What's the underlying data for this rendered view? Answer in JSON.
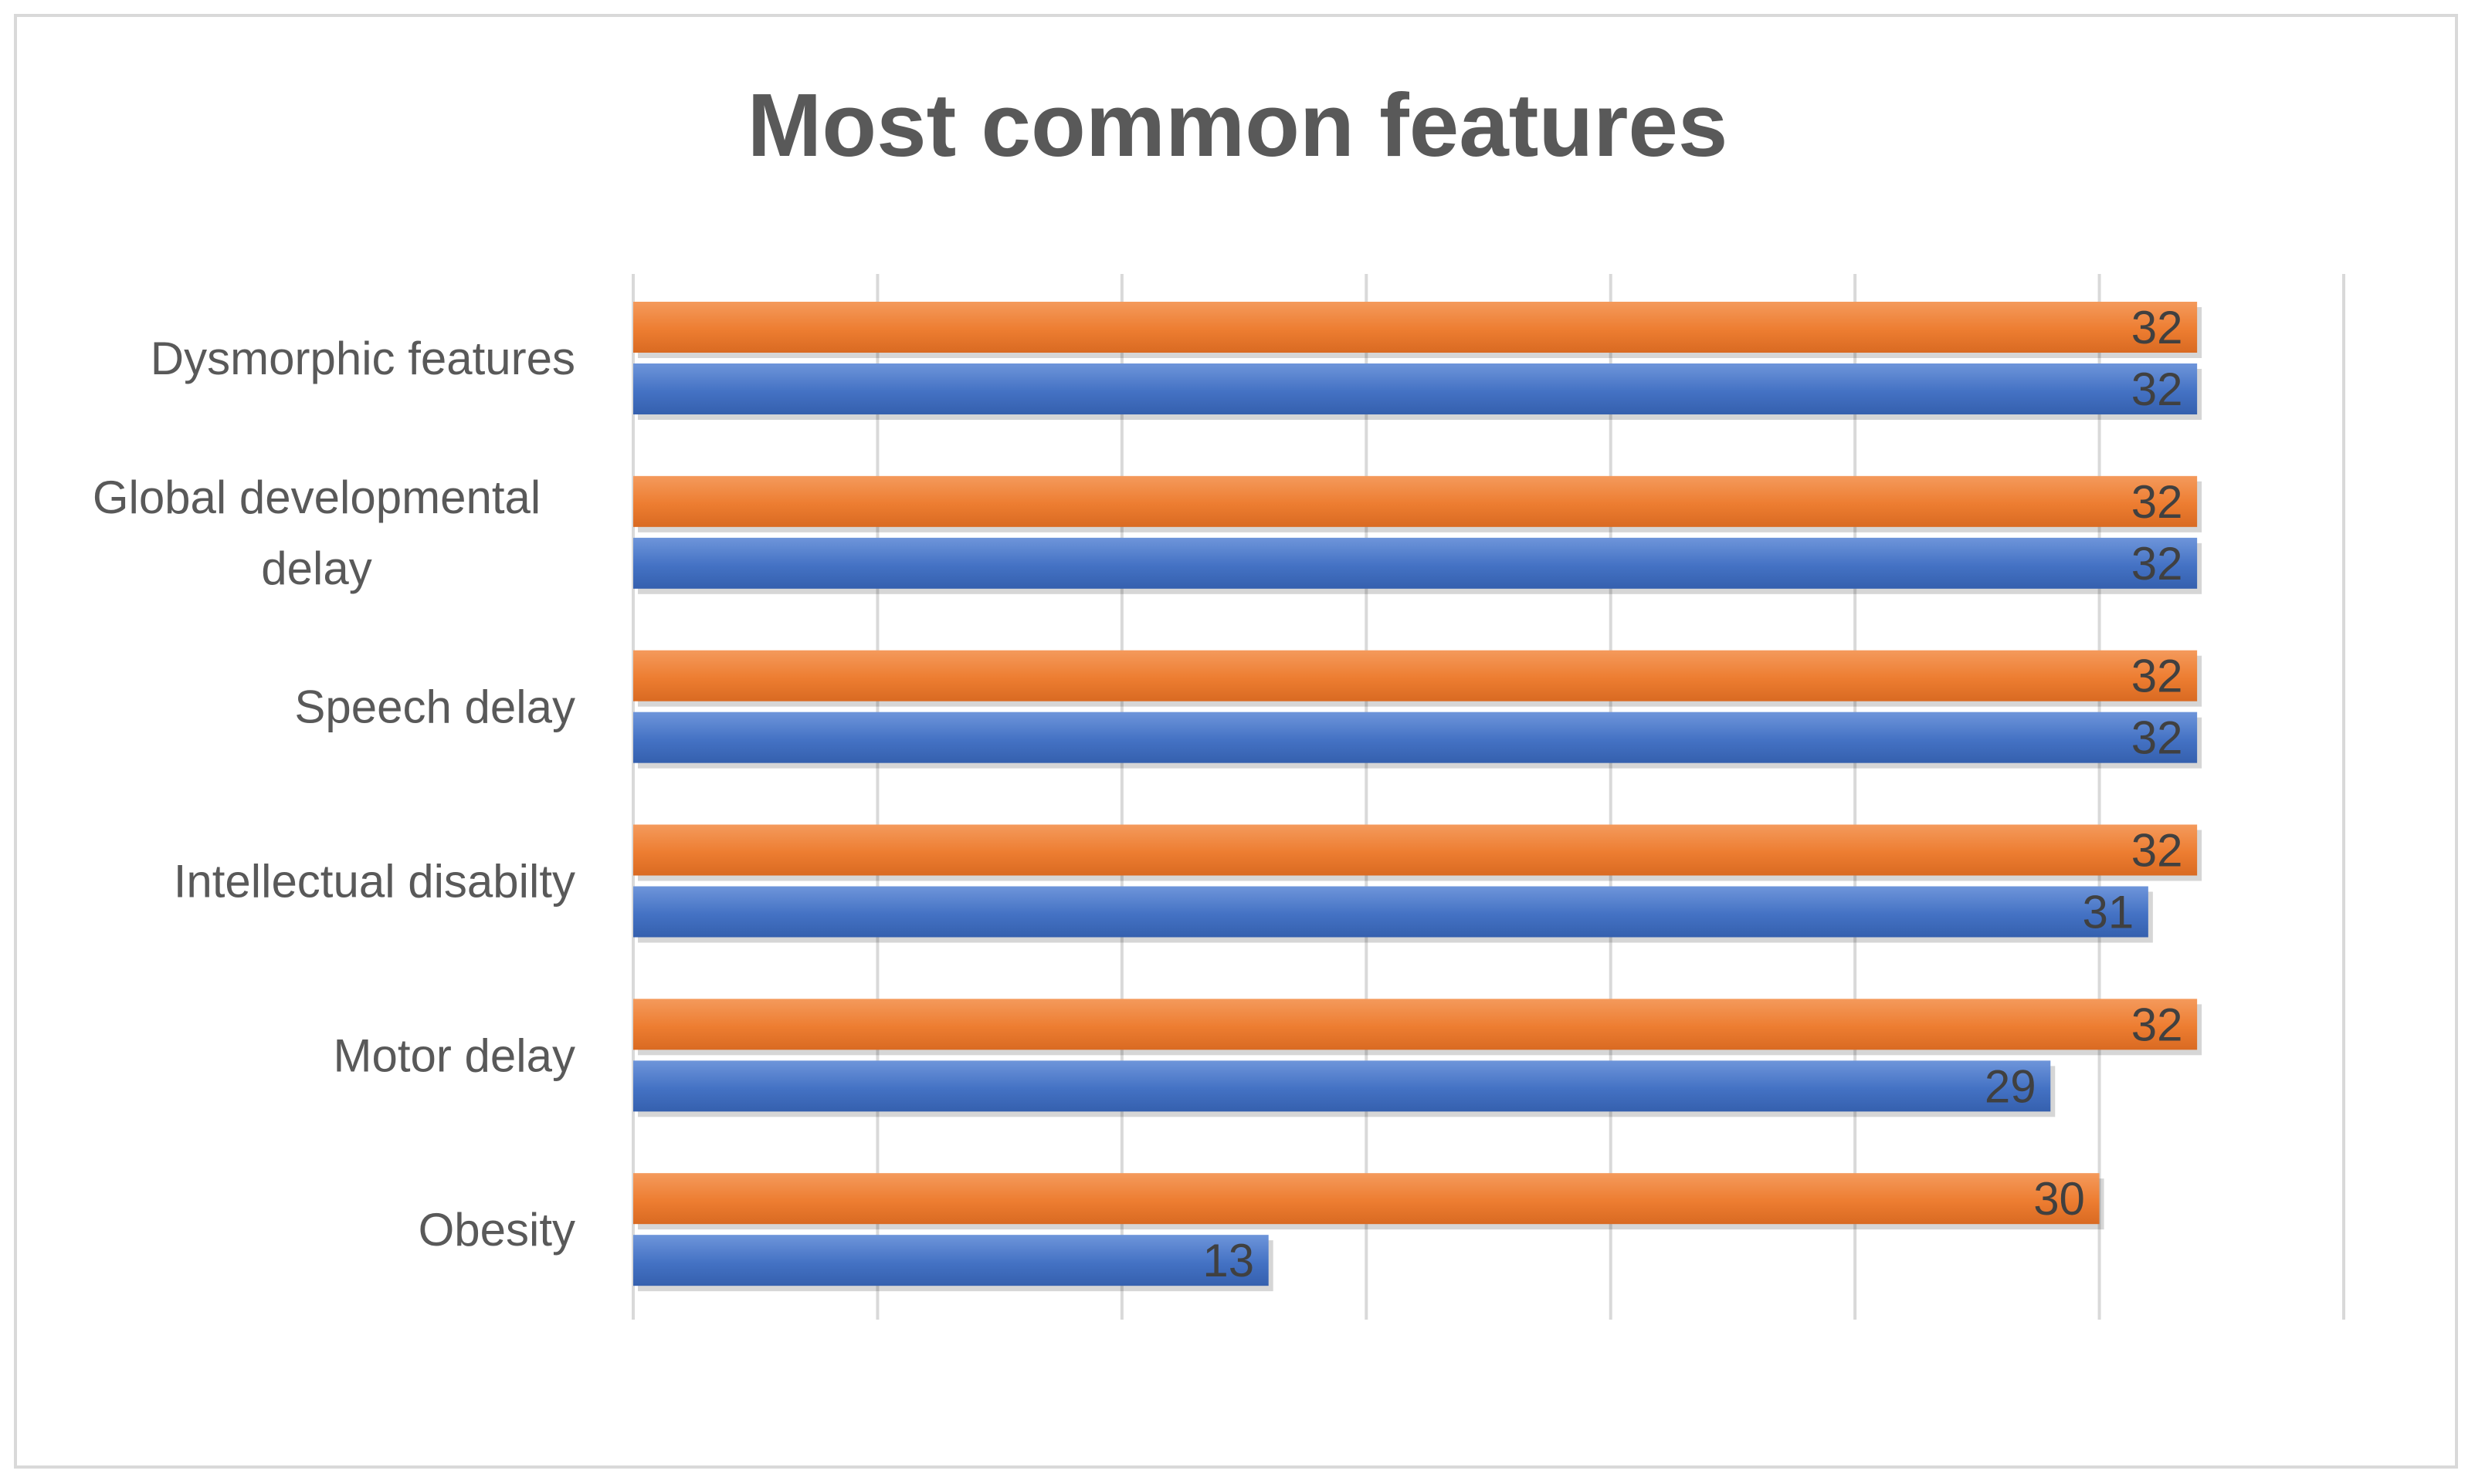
{
  "chart_data": {
    "type": "bar",
    "orientation": "horizontal",
    "title": "Most common features",
    "xlabel": "",
    "ylabel": "",
    "categories": [
      "Dysmorphic features",
      "Global developmental delay",
      "Speech delay",
      "Intellectual disabilty",
      "Motor delay",
      "Obesity"
    ],
    "category_lines": [
      [
        "Dysmorphic features"
      ],
      [
        "Global developmental",
        "delay"
      ],
      [
        "Speech delay"
      ],
      [
        "Intellectual disabilty"
      ],
      [
        "Motor delay"
      ],
      [
        "Obesity"
      ]
    ],
    "series": [
      {
        "color": "#ED7D31",
        "values": [
          32,
          32,
          32,
          32,
          32,
          30
        ]
      },
      {
        "color": "#4472C4",
        "values": [
          32,
          32,
          32,
          31,
          29,
          13
        ]
      }
    ],
    "xlim": [
      0,
      35
    ],
    "x_gridlines_every": 5,
    "grid": true,
    "x_tick_labels_visible": false,
    "legend": "none",
    "data_labels": true
  }
}
